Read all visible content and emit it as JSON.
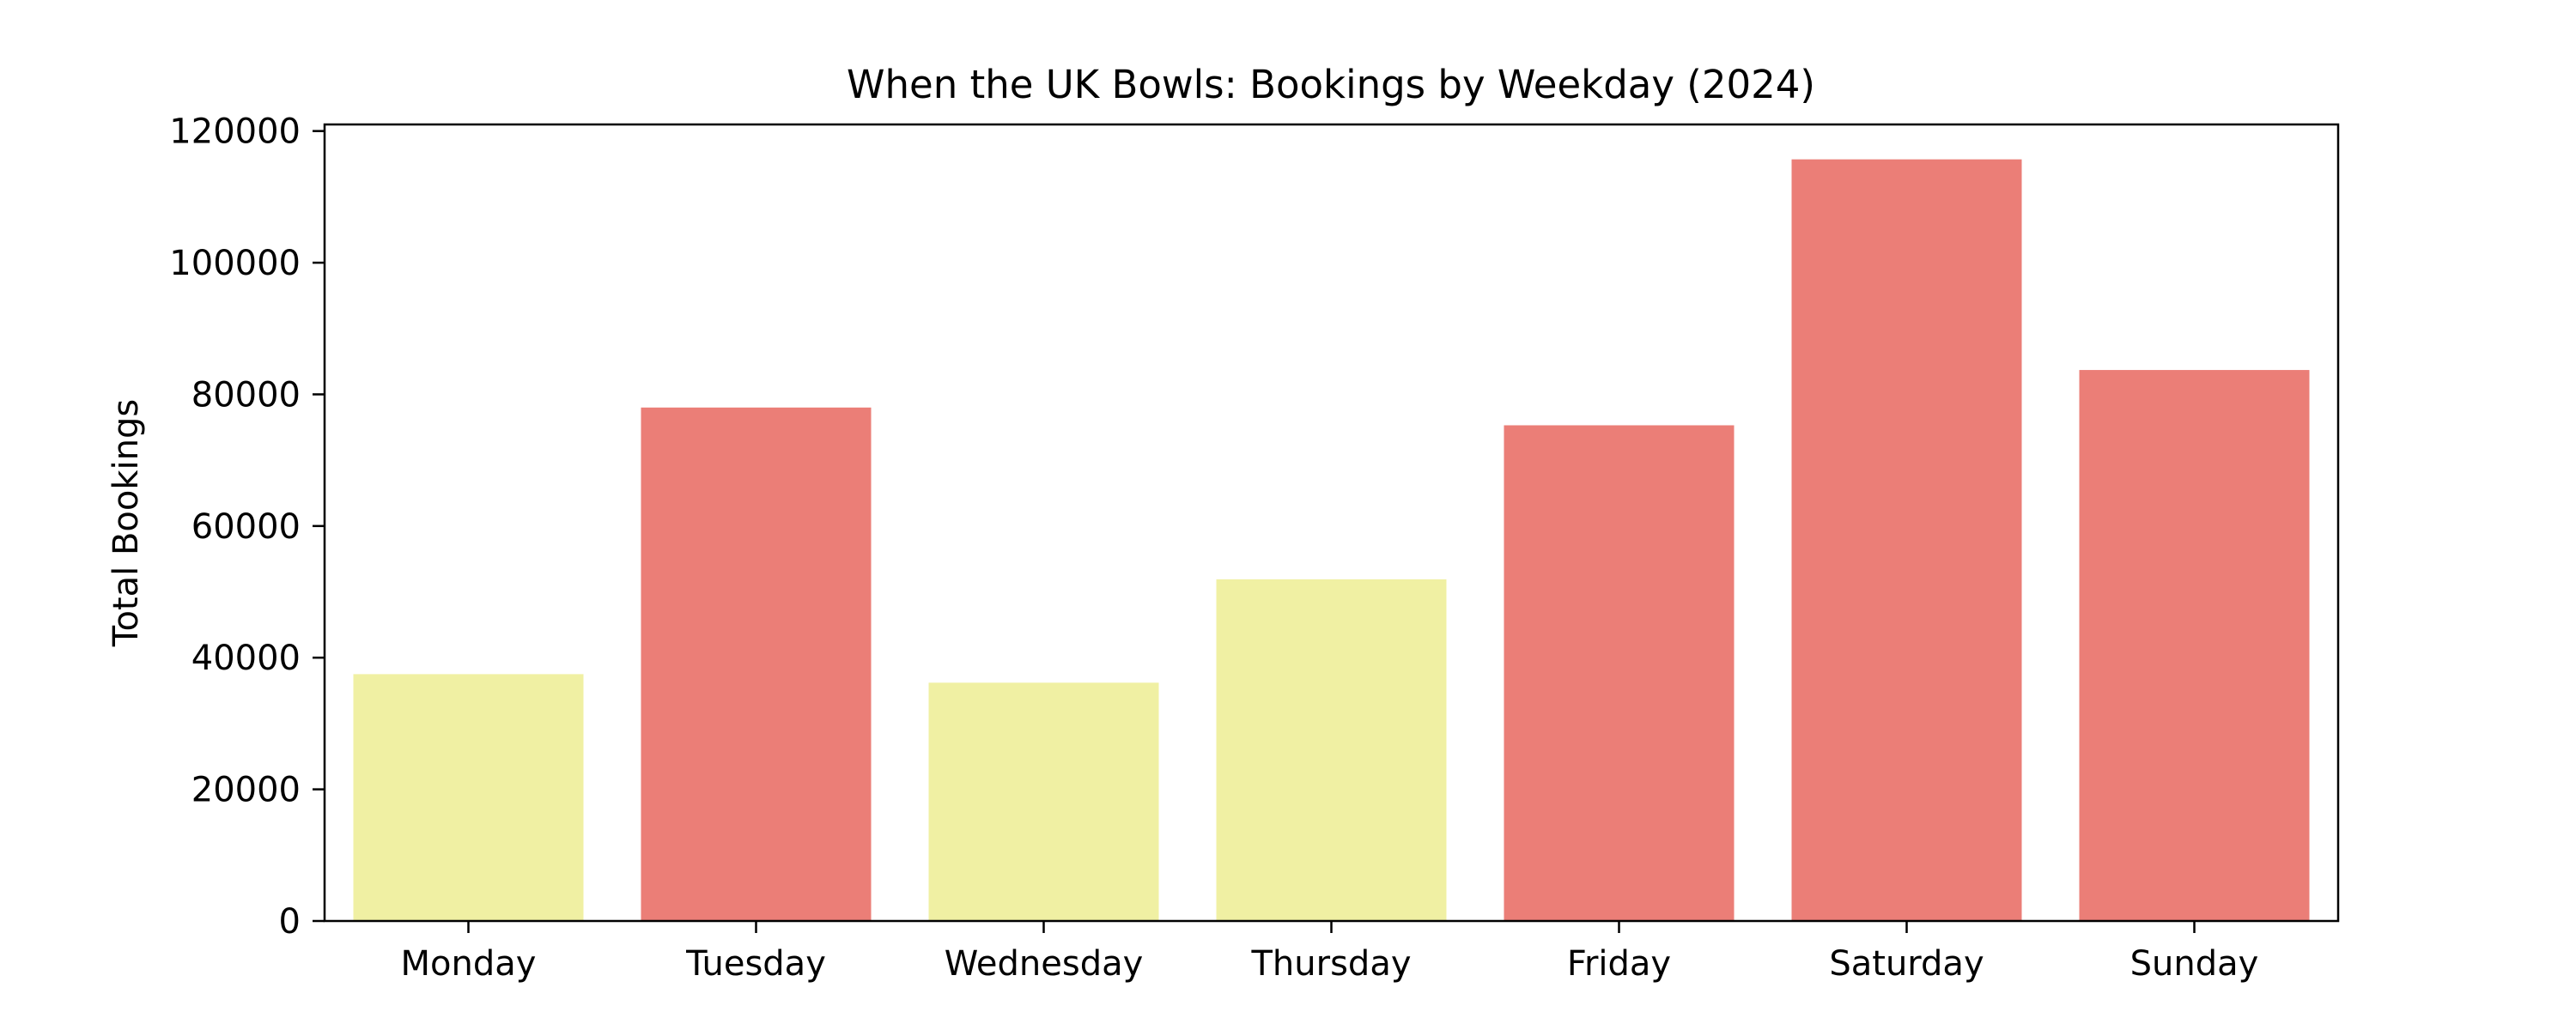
{
  "chart_data": {
    "type": "bar",
    "title": "When the UK Bowls: Bookings by Weekday (2024)",
    "xlabel": "",
    "ylabel": "Total Bookings",
    "categories": [
      "Monday",
      "Tuesday",
      "Wednesday",
      "Thursday",
      "Friday",
      "Saturday",
      "Sunday"
    ],
    "values": [
      37500,
      78000,
      36200,
      51900,
      75300,
      115700,
      83700
    ],
    "bar_colors": [
      "#f0f0a3",
      "#eb7e77",
      "#f0f0a3",
      "#f0f0a3",
      "#eb7e77",
      "#eb7e77",
      "#eb7e77"
    ],
    "ylim": [
      0,
      121000
    ],
    "yticks": [
      0,
      20000,
      40000,
      60000,
      80000,
      100000,
      120000
    ],
    "ytick_labels": [
      "0",
      "20000",
      "40000",
      "60000",
      "80000",
      "100000",
      "120000"
    ],
    "grid": false,
    "legend": "none"
  }
}
